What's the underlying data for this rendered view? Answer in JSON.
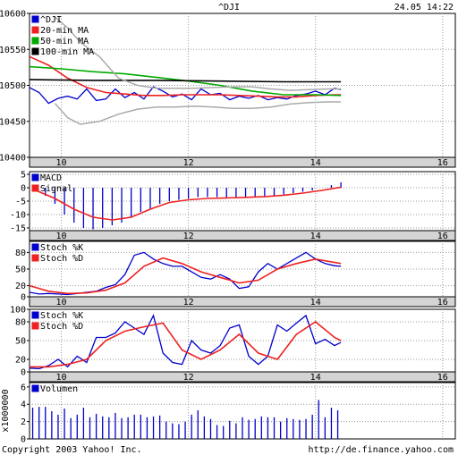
{
  "header": {
    "symbol": "^DJI",
    "datetime": "24.05 14:22"
  },
  "footer": {
    "copyright": "Copyright 2003 Yahoo! Inc.",
    "url": "http://de.finance.yahoo.com"
  },
  "colors": {
    "price": "#0000cc",
    "ma20": "#ee2222",
    "ma50": "#00aa00",
    "ma100": "#000000",
    "bollinger": "#aaaaaa",
    "grid": "#999999",
    "band": "#d4d4d4",
    "frame": "#000000"
  },
  "chart_data": [
    {
      "type": "line",
      "id": "price",
      "x_ticks": [
        10,
        12,
        14,
        16
      ],
      "xlim": [
        9.5,
        16.2
      ],
      "y_ticks": [
        10400,
        10450,
        10500,
        10550,
        10600
      ],
      "ylim": [
        10400,
        10600
      ],
      "grid": true,
      "legend_placement": "top-left",
      "series": [
        {
          "name": "^DJI",
          "x": [
            9.5,
            9.65,
            9.8,
            9.95,
            10.1,
            10.25,
            10.4,
            10.55,
            10.7,
            10.85,
            11.0,
            11.15,
            11.3,
            11.45,
            11.6,
            11.75,
            11.9,
            12.05,
            12.2,
            12.35,
            12.5,
            12.65,
            12.8,
            12.95,
            13.1,
            13.25,
            13.4,
            13.55,
            13.7,
            13.85,
            14.0,
            14.15,
            14.3,
            14.4
          ],
          "y": [
            10497,
            10490,
            10475,
            10482,
            10485,
            10481,
            10495,
            10479,
            10481,
            10495,
            10483,
            10490,
            10481,
            10498,
            10492,
            10484,
            10488,
            10480,
            10495,
            10487,
            10489,
            10480,
            10485,
            10482,
            10486,
            10480,
            10483,
            10481,
            10486,
            10488,
            10492,
            10487,
            10496,
            10494
          ]
        },
        {
          "name": "20-min MA",
          "x": [
            9.5,
            9.8,
            10.1,
            10.4,
            10.7,
            11.0,
            11.3,
            11.6,
            11.9,
            12.2,
            12.5,
            12.8,
            13.1,
            13.4,
            13.7,
            14.0,
            14.3,
            14.4
          ],
          "y": [
            10540,
            10528,
            10510,
            10497,
            10490,
            10488,
            10486,
            10486,
            10487,
            10487,
            10487,
            10486,
            10485,
            10484,
            10484,
            10486,
            10487,
            10487
          ]
        },
        {
          "name": "50-min MA",
          "x": [
            9.5,
            10.0,
            10.5,
            11.0,
            11.5,
            12.0,
            12.5,
            13.0,
            13.5,
            14.0,
            14.4
          ],
          "y": [
            10526,
            10523,
            10519,
            10516,
            10511,
            10506,
            10500,
            10492,
            10487,
            10487,
            10486
          ]
        },
        {
          "name": "100-min MA",
          "x": [
            9.5,
            10.5,
            11.5,
            12.5,
            13.5,
            14.4
          ],
          "y": [
            10508,
            10507,
            10507,
            10506,
            10505,
            10505
          ]
        },
        {
          "name": "",
          "x": [
            9.9,
            10.1,
            10.3,
            10.6,
            10.9,
            11.2,
            11.5,
            11.8,
            12.1,
            12.4,
            12.7,
            13.0,
            13.3,
            13.6,
            13.9,
            14.2,
            14.4
          ],
          "y": [
            10595,
            10580,
            10560,
            10540,
            10510,
            10500,
            10496,
            10496,
            10496,
            10497,
            10498,
            10498,
            10495,
            10493,
            10494,
            10495,
            10495
          ]
        },
        {
          "name": "",
          "x": [
            9.9,
            10.1,
            10.3,
            10.6,
            10.9,
            11.2,
            11.5,
            11.8,
            12.1,
            12.4,
            12.7,
            13.0,
            13.3,
            13.6,
            13.9,
            14.2,
            14.4
          ],
          "y": [
            10475,
            10455,
            10446,
            10450,
            10460,
            10467,
            10470,
            10470,
            10471,
            10470,
            10468,
            10468,
            10470,
            10474,
            10476,
            10477,
            10477
          ]
        }
      ]
    },
    {
      "type": "bar+line",
      "id": "macd",
      "x_ticks": [
        10,
        12,
        14,
        16
      ],
      "xlim": [
        9.5,
        16.2
      ],
      "y_ticks": [
        5,
        0,
        -5,
        -10,
        -15
      ],
      "ylim": [
        -16,
        6
      ],
      "grid": true,
      "legend_placement": "top-left",
      "series": [
        {
          "name": "MACD",
          "x": [
            9.6,
            9.75,
            9.9,
            10.05,
            10.2,
            10.35,
            10.5,
            10.65,
            10.8,
            10.95,
            11.1,
            11.25,
            11.4,
            11.55,
            11.7,
            11.85,
            12.0,
            12.15,
            12.3,
            12.45,
            12.6,
            12.75,
            12.9,
            13.05,
            13.2,
            13.35,
            13.5,
            13.65,
            13.8,
            13.95,
            14.1,
            14.25,
            14.4
          ],
          "y": [
            -1,
            -3,
            -6,
            -10,
            -13,
            -15,
            -15.5,
            -15,
            -14,
            -13,
            -11,
            -9,
            -8,
            -6,
            -5,
            -4.5,
            -4,
            -3.5,
            -3.5,
            -3.5,
            -3.5,
            -3.5,
            -3.5,
            -3.5,
            -3.5,
            -3,
            -2.5,
            -2,
            -1.5,
            -1,
            0,
            1,
            2
          ]
        },
        {
          "name": "Signal",
          "x": [
            9.6,
            9.9,
            10.2,
            10.5,
            10.8,
            11.1,
            11.4,
            11.7,
            12.0,
            12.3,
            12.6,
            12.9,
            13.2,
            13.5,
            13.8,
            14.1,
            14.4
          ],
          "y": [
            -1,
            -4,
            -8,
            -11,
            -12,
            -11,
            -8,
            -5.5,
            -4.5,
            -4,
            -3.8,
            -3.6,
            -3.3,
            -2.8,
            -2,
            -1,
            0.2
          ]
        }
      ]
    },
    {
      "type": "line",
      "id": "stoch1",
      "x_ticks": [
        10,
        12,
        14,
        16
      ],
      "xlim": [
        9.5,
        16.2
      ],
      "y_ticks": [
        80,
        50,
        20,
        0
      ],
      "ylim": [
        0,
        100
      ],
      "grid": true,
      "legend_placement": "top-left",
      "series": [
        {
          "name": "Stoch %K",
          "x": [
            9.5,
            9.65,
            9.8,
            9.95,
            10.1,
            10.25,
            10.4,
            10.55,
            10.7,
            10.85,
            11.0,
            11.15,
            11.3,
            11.45,
            11.6,
            11.75,
            11.9,
            12.05,
            12.2,
            12.35,
            12.5,
            12.65,
            12.8,
            12.95,
            13.1,
            13.25,
            13.4,
            13.55,
            13.7,
            13.85,
            14.0,
            14.15,
            14.3,
            14.4
          ],
          "y": [
            8,
            5,
            6,
            5,
            4,
            6,
            8,
            10,
            17,
            22,
            40,
            75,
            80,
            68,
            60,
            55,
            55,
            45,
            35,
            32,
            40,
            32,
            15,
            18,
            45,
            60,
            50,
            60,
            70,
            80,
            68,
            60,
            56,
            55
          ]
        },
        {
          "name": "Stoch %D",
          "x": [
            9.5,
            9.8,
            10.1,
            10.4,
            10.7,
            11.0,
            11.3,
            11.6,
            11.9,
            12.2,
            12.5,
            12.8,
            13.1,
            13.4,
            13.7,
            14.0,
            14.3,
            14.4
          ],
          "y": [
            20,
            10,
            6,
            7,
            12,
            25,
            55,
            70,
            60,
            45,
            35,
            25,
            30,
            50,
            60,
            68,
            62,
            60
          ]
        }
      ]
    },
    {
      "type": "line",
      "id": "stoch2",
      "x_ticks": [
        10,
        12,
        14,
        16
      ],
      "xlim": [
        9.5,
        16.2
      ],
      "y_ticks": [
        100,
        80,
        50,
        20,
        0
      ],
      "ylim": [
        0,
        100
      ],
      "grid": true,
      "legend_placement": "top-left",
      "series": [
        {
          "name": "Stoch %K",
          "x": [
            9.5,
            9.65,
            9.8,
            9.95,
            10.1,
            10.25,
            10.4,
            10.55,
            10.7,
            10.85,
            11.0,
            11.15,
            11.3,
            11.45,
            11.6,
            11.75,
            11.9,
            12.05,
            12.2,
            12.35,
            12.5,
            12.65,
            12.8,
            12.95,
            13.1,
            13.25,
            13.4,
            13.55,
            13.7,
            13.85,
            14.0,
            14.15,
            14.3,
            14.4
          ],
          "y": [
            6,
            5,
            10,
            20,
            8,
            25,
            15,
            55,
            55,
            62,
            80,
            70,
            60,
            90,
            30,
            15,
            12,
            50,
            35,
            30,
            42,
            70,
            75,
            25,
            12,
            25,
            75,
            65,
            78,
            90,
            45,
            52,
            42,
            47
          ]
        },
        {
          "name": "Stoch %D",
          "x": [
            9.5,
            9.8,
            10.1,
            10.4,
            10.7,
            11.0,
            11.3,
            11.6,
            11.9,
            12.2,
            12.5,
            12.8,
            13.1,
            13.4,
            13.7,
            14.0,
            14.3,
            14.4
          ],
          "y": [
            8,
            8,
            12,
            20,
            50,
            65,
            72,
            78,
            35,
            20,
            35,
            60,
            30,
            20,
            60,
            80,
            55,
            50
          ]
        }
      ]
    },
    {
      "type": "bar",
      "id": "volume",
      "x_ticks": [
        10,
        12,
        14,
        16
      ],
      "xlim": [
        9.5,
        16.2
      ],
      "y_ticks": [
        6,
        4,
        2,
        0
      ],
      "ylim": [
        0,
        6.5
      ],
      "ylabel": "x1000000",
      "grid": true,
      "legend_placement": "top-left",
      "series": [
        {
          "name": "Volumen",
          "x": [
            9.55,
            9.65,
            9.75,
            9.85,
            9.95,
            10.05,
            10.15,
            10.25,
            10.35,
            10.45,
            10.55,
            10.65,
            10.75,
            10.85,
            10.95,
            11.05,
            11.15,
            11.25,
            11.35,
            11.45,
            11.55,
            11.65,
            11.75,
            11.85,
            11.95,
            12.05,
            12.15,
            12.25,
            12.35,
            12.45,
            12.55,
            12.65,
            12.75,
            12.85,
            12.95,
            13.05,
            13.15,
            13.25,
            13.35,
            13.45,
            13.55,
            13.65,
            13.75,
            13.85,
            13.95,
            14.05,
            14.15,
            14.25,
            14.35
          ],
          "y": [
            3.6,
            3.7,
            3.7,
            3.2,
            2.8,
            3.5,
            2.4,
            2.8,
            3.6,
            2.5,
            2.9,
            2.6,
            2.5,
            3.0,
            2.4,
            2.5,
            2.8,
            2.8,
            2.5,
            2.6,
            2.7,
            2.0,
            1.8,
            1.7,
            2.0,
            2.8,
            3.3,
            2.6,
            2.3,
            1.6,
            1.5,
            2.1,
            1.8,
            2.5,
            2.2,
            2.3,
            2.6,
            2.5,
            2.5,
            2.0,
            2.4,
            2.3,
            2.2,
            2.3,
            2.8,
            4.5,
            2.5,
            3.6,
            3.3
          ]
        }
      ]
    }
  ]
}
